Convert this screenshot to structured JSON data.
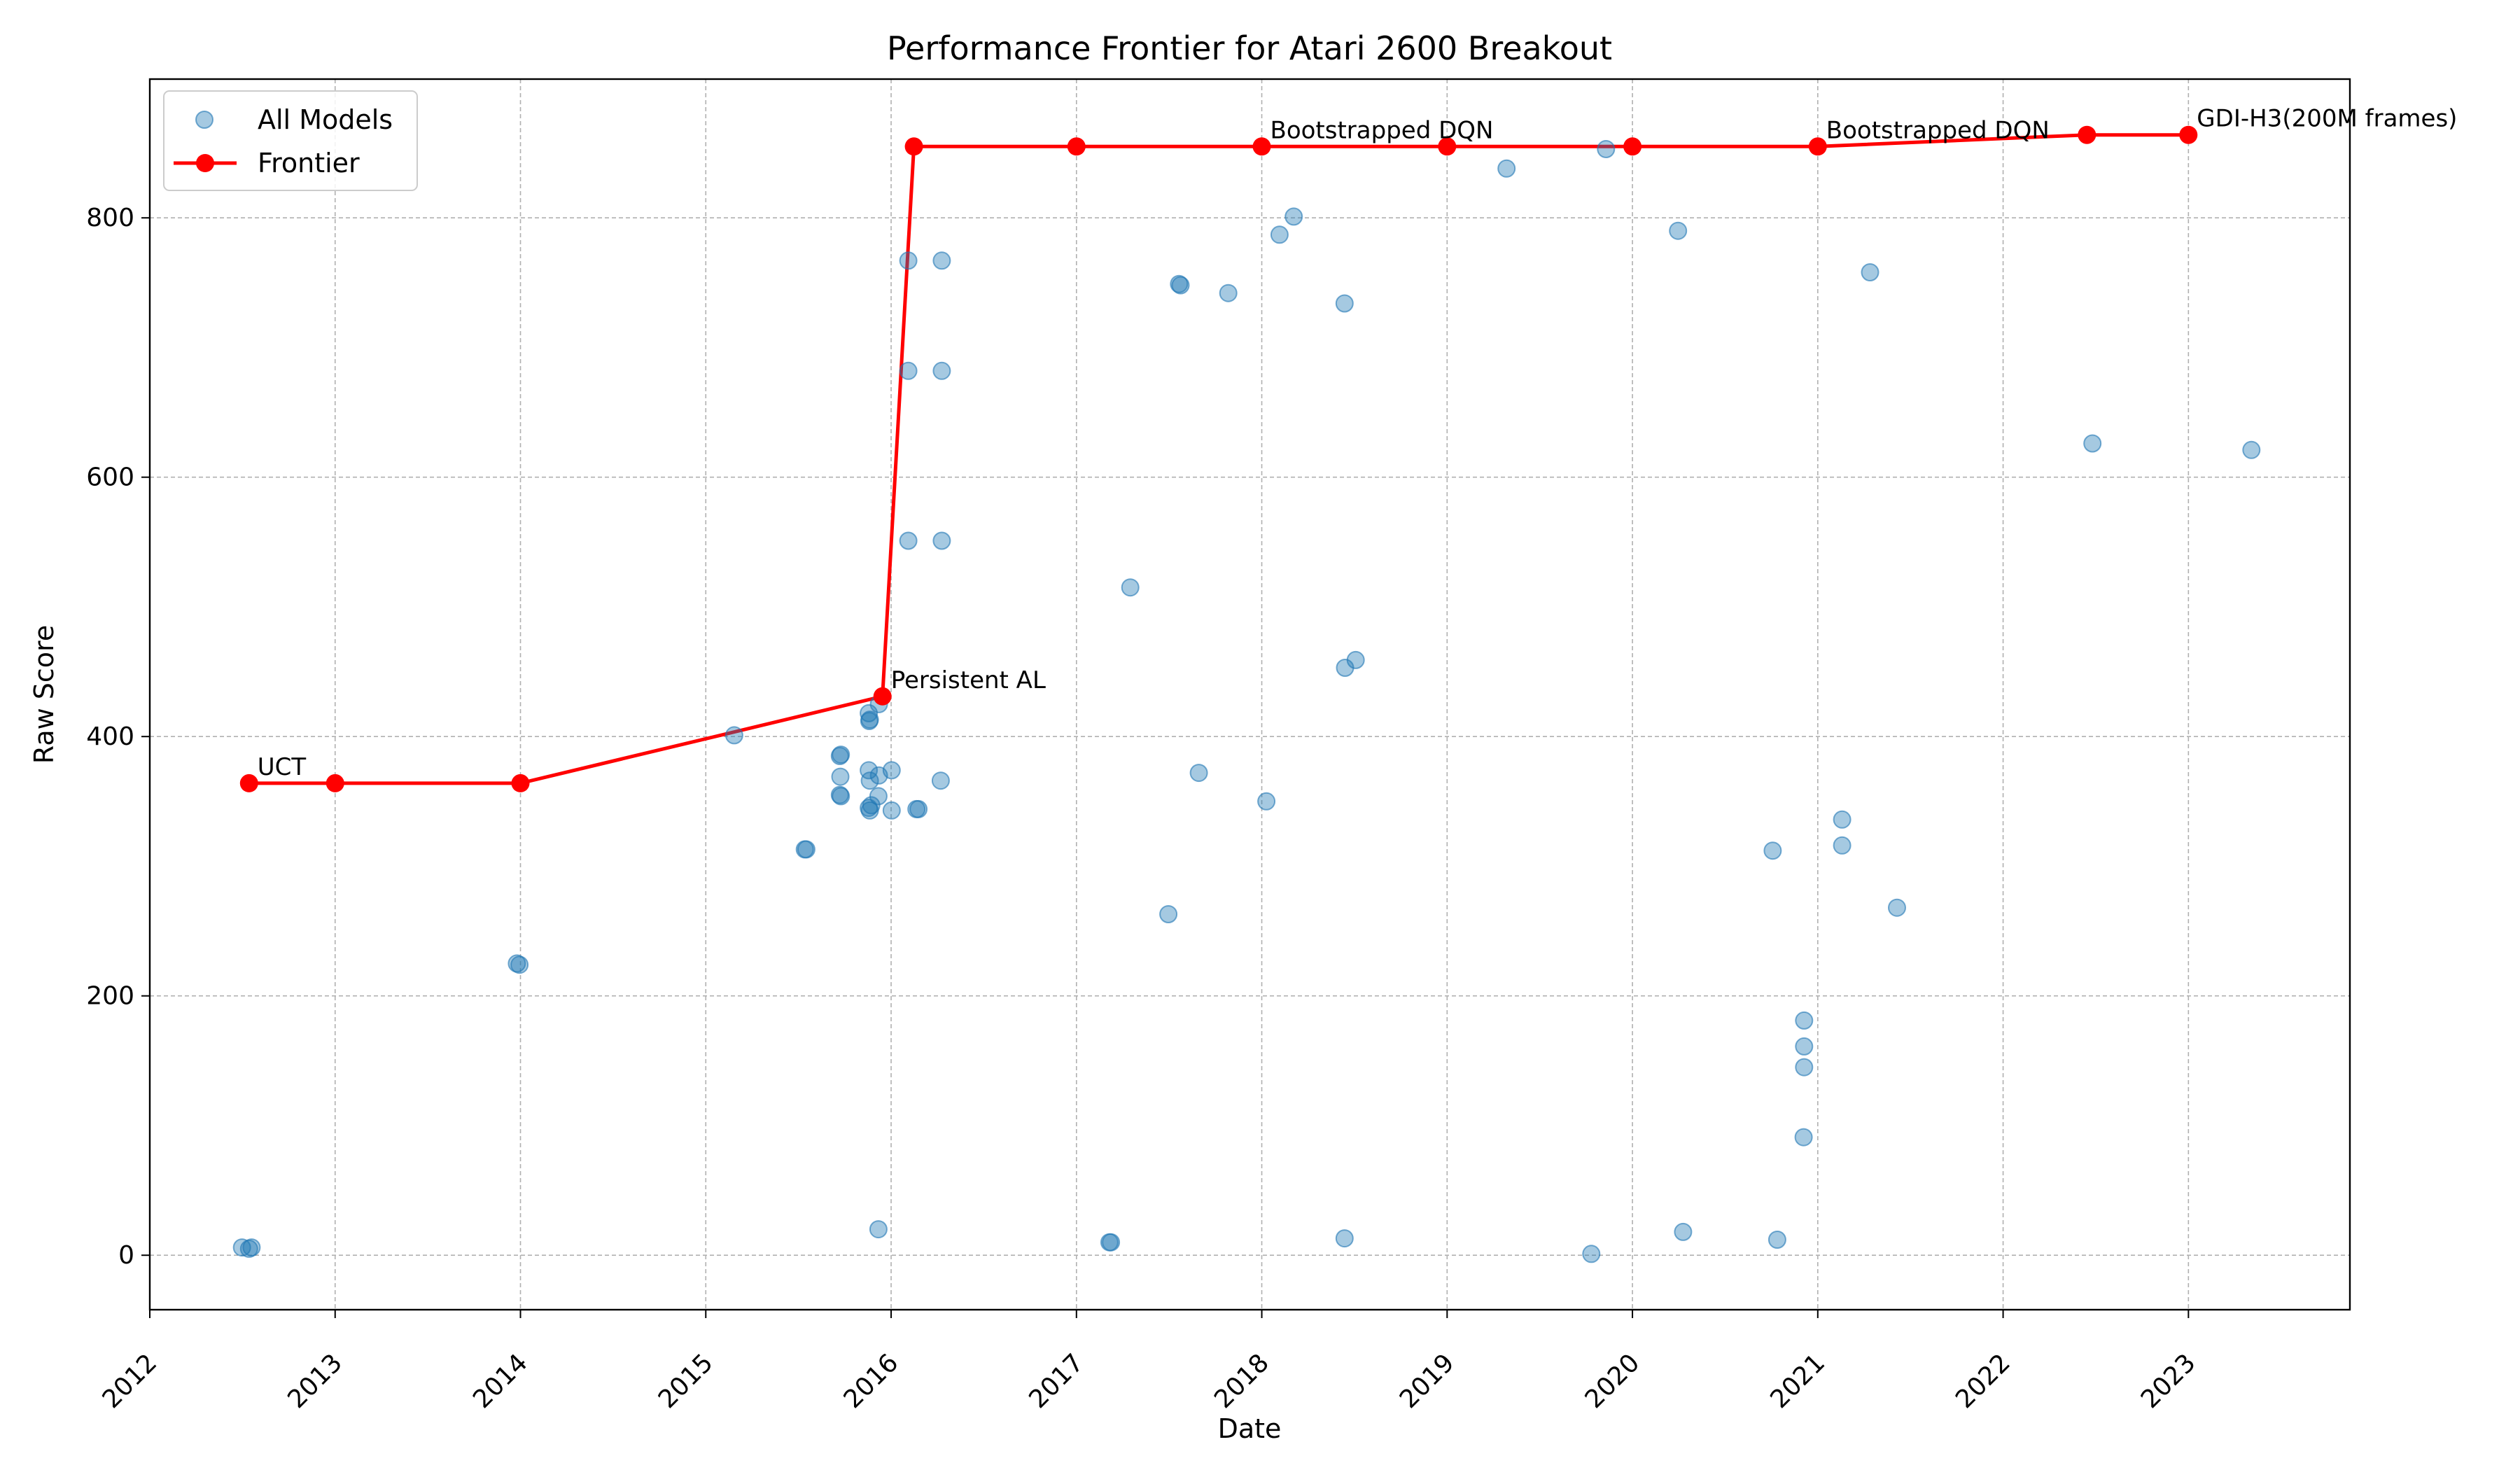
{
  "chart_data": {
    "type": "scatter",
    "title": "Performance Frontier for Atari 2600 Breakout",
    "xlabel": "Date",
    "ylabel": "Raw Score",
    "xlim": [
      "2012-01-01",
      "2023-11-15"
    ],
    "ylim": [
      -42,
      907
    ],
    "x_ticks": [
      "2012",
      "2013",
      "2014",
      "2015",
      "2016",
      "2017",
      "2018",
      "2019",
      "2020",
      "2021",
      "2022",
      "2023"
    ],
    "y_ticks": [
      0,
      200,
      400,
      600,
      800
    ],
    "grid": true,
    "legend_position": "top-left",
    "legend": [
      {
        "name": "All Models",
        "marker": "circle",
        "color": "#1f77b4"
      },
      {
        "name": "Frontier",
        "marker": "line-circle",
        "color": "#ff0000"
      }
    ],
    "colors": {
      "scatter": "#1f77b4",
      "frontier": "#ff0000"
    },
    "series": [
      {
        "name": "All Models",
        "points": [
          {
            "x": "2012-07-01",
            "y": 6
          },
          {
            "x": "2012-07-15",
            "y": 5
          },
          {
            "x": "2012-07-20",
            "y": 6
          },
          {
            "x": "2013-12-25",
            "y": 225
          },
          {
            "x": "2013-12-30",
            "y": 224
          },
          {
            "x": "2015-02-26",
            "y": 401
          },
          {
            "x": "2015-07-15",
            "y": 313
          },
          {
            "x": "2015-07-18",
            "y": 313
          },
          {
            "x": "2015-09-22",
            "y": 385
          },
          {
            "x": "2015-09-24",
            "y": 386
          },
          {
            "x": "2015-09-23",
            "y": 369
          },
          {
            "x": "2015-09-22",
            "y": 355
          },
          {
            "x": "2015-09-24",
            "y": 354
          },
          {
            "x": "2015-11-18",
            "y": 418
          },
          {
            "x": "2015-11-20",
            "y": 413
          },
          {
            "x": "2015-11-19",
            "y": 412
          },
          {
            "x": "2015-11-18",
            "y": 374
          },
          {
            "x": "2015-11-20",
            "y": 366
          },
          {
            "x": "2015-11-18",
            "y": 345
          },
          {
            "x": "2015-11-20",
            "y": 343
          },
          {
            "x": "2015-11-23",
            "y": 347
          },
          {
            "x": "2015-12-08",
            "y": 425
          },
          {
            "x": "2015-12-08",
            "y": 370
          },
          {
            "x": "2015-12-07",
            "y": 354
          },
          {
            "x": "2015-12-07",
            "y": 20
          },
          {
            "x": "2016-01-02",
            "y": 374
          },
          {
            "x": "2016-01-02",
            "y": 343
          },
          {
            "x": "2016-02-04",
            "y": 767
          },
          {
            "x": "2016-02-04",
            "y": 682
          },
          {
            "x": "2016-02-04",
            "y": 551
          },
          {
            "x": "2016-02-20",
            "y": 344
          },
          {
            "x": "2016-02-24",
            "y": 344
          },
          {
            "x": "2016-04-10",
            "y": 767
          },
          {
            "x": "2016-04-10",
            "y": 682
          },
          {
            "x": "2016-04-10",
            "y": 551
          },
          {
            "x": "2016-04-08",
            "y": 366
          },
          {
            "x": "2017-03-07",
            "y": 10
          },
          {
            "x": "2017-03-10",
            "y": 10
          },
          {
            "x": "2017-04-17",
            "y": 515
          },
          {
            "x": "2017-07-01",
            "y": 263
          },
          {
            "x": "2017-07-22",
            "y": 749
          },
          {
            "x": "2017-07-25",
            "y": 748
          },
          {
            "x": "2017-08-30",
            "y": 372
          },
          {
            "x": "2017-10-27",
            "y": 742
          },
          {
            "x": "2018-01-10",
            "y": 350
          },
          {
            "x": "2018-02-05",
            "y": 787
          },
          {
            "x": "2018-03-05",
            "y": 801
          },
          {
            "x": "2018-06-13",
            "y": 734
          },
          {
            "x": "2018-06-14",
            "y": 453
          },
          {
            "x": "2018-07-05",
            "y": 459
          },
          {
            "x": "2018-06-13",
            "y": 13
          },
          {
            "x": "2019-04-28",
            "y": 838
          },
          {
            "x": "2019-10-12",
            "y": 1
          },
          {
            "x": "2019-11-10",
            "y": 853
          },
          {
            "x": "2020-03-31",
            "y": 790
          },
          {
            "x": "2020-04-10",
            "y": 18
          },
          {
            "x": "2020-10-04",
            "y": 312
          },
          {
            "x": "2020-10-13",
            "y": 12
          },
          {
            "x": "2020-12-05",
            "y": 181
          },
          {
            "x": "2020-12-05",
            "y": 161
          },
          {
            "x": "2020-12-05",
            "y": 145
          },
          {
            "x": "2020-12-04",
            "y": 91
          },
          {
            "x": "2021-02-18",
            "y": 336
          },
          {
            "x": "2021-02-18",
            "y": 316
          },
          {
            "x": "2021-04-14",
            "y": 758
          },
          {
            "x": "2021-06-06",
            "y": 268
          },
          {
            "x": "2022-06-26",
            "y": 626
          },
          {
            "x": "2023-05-05",
            "y": 621
          }
        ]
      },
      {
        "name": "Frontier",
        "points": [
          {
            "x": "2012-07-15",
            "y": 364
          },
          {
            "x": "2013-01-01",
            "y": 364
          },
          {
            "x": "2014-01-01",
            "y": 364
          },
          {
            "x": "2015-12-15",
            "y": 431
          },
          {
            "x": "2016-02-15",
            "y": 855
          },
          {
            "x": "2017-01-01",
            "y": 855
          },
          {
            "x": "2018-01-01",
            "y": 855
          },
          {
            "x": "2019-01-01",
            "y": 855
          },
          {
            "x": "2020-01-01",
            "y": 855
          },
          {
            "x": "2021-01-01",
            "y": 855
          },
          {
            "x": "2022-06-15",
            "y": 864
          },
          {
            "x": "2023-01-01",
            "y": 864
          }
        ]
      }
    ],
    "annotations": [
      {
        "text": "UCT",
        "x": "2012-07-15",
        "y": 364
      },
      {
        "text": "Persistent AL",
        "x": "2015-12-15",
        "y": 431
      },
      {
        "text": "Bootstrapped DQN",
        "x": "2018-01-01",
        "y": 855
      },
      {
        "text": "Bootstrapped DQN",
        "x": "2021-01-01",
        "y": 855
      },
      {
        "text": "GDI-H3(200M frames)",
        "x": "2023-01-01",
        "y": 864
      }
    ]
  }
}
